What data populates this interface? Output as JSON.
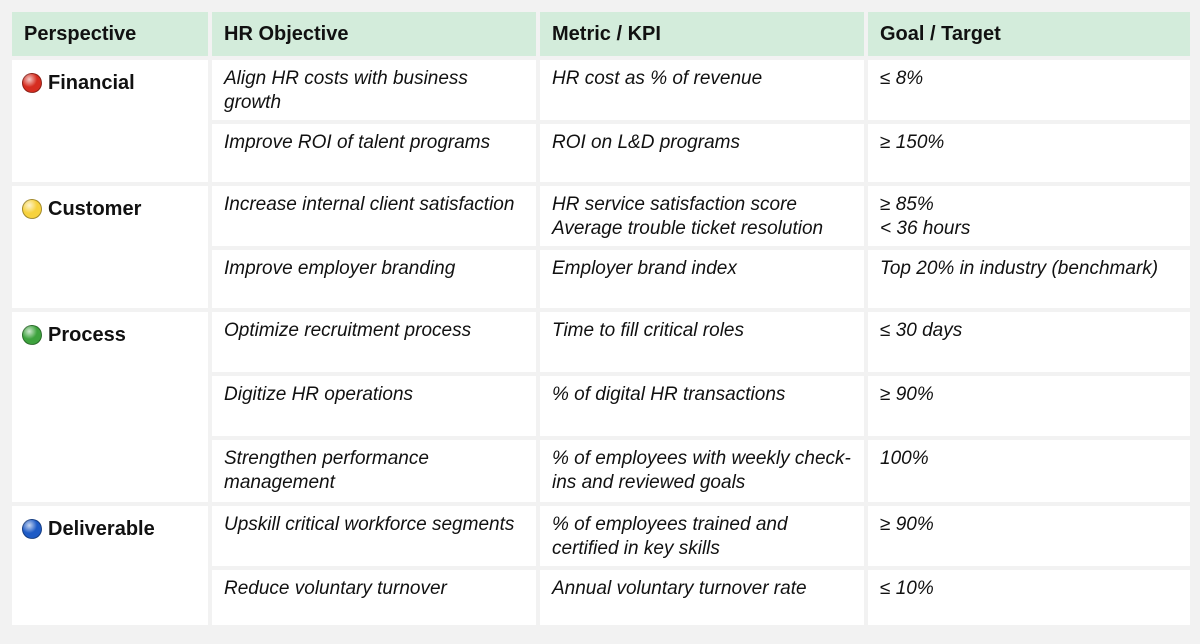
{
  "headers": {
    "perspective": "Perspective",
    "objective": "HR Objective",
    "metric": "Metric / KPI",
    "goal": "Goal / Target"
  },
  "perspectives": [
    {
      "label": "Financial",
      "icon": "red-circle-icon",
      "color": "#d62d20"
    },
    {
      "label": "Customer",
      "icon": "yellow-circle-icon",
      "color": "#f7d23e"
    },
    {
      "label": "Process",
      "icon": "green-circle-icon",
      "color": "#3ea33e"
    },
    {
      "label": "Deliverable",
      "icon": "blue-circle-icon",
      "color": "#1e5bc6"
    }
  ],
  "rows": [
    {
      "objective": [
        "Align HR costs with business",
        "growth"
      ],
      "metric": [
        "HR cost as % of revenue"
      ],
      "goal": [
        "≤ 8%"
      ]
    },
    {
      "objective": [
        "Improve ROI of talent programs"
      ],
      "metric": [
        "ROI on L&D programs"
      ],
      "goal": [
        "≥ 150%"
      ]
    },
    {
      "objective": [
        "Increase internal client satisfaction"
      ],
      "metric": [
        "HR service satisfaction score",
        "Average trouble ticket resolution"
      ],
      "goal": [
        "≥ 85%",
        "< 36 hours"
      ]
    },
    {
      "objective": [
        "Improve employer branding"
      ],
      "metric": [
        "Employer brand index"
      ],
      "goal": [
        "Top 20% in industry (benchmark)"
      ]
    },
    {
      "objective": [
        "Optimize recruitment process"
      ],
      "metric": [
        "Time to fill critical roles"
      ],
      "goal": [
        "≤ 30 days"
      ]
    },
    {
      "objective": [
        "Digitize HR operations"
      ],
      "metric": [
        "% of digital HR transactions"
      ],
      "goal": [
        "≥ 90%"
      ]
    },
    {
      "objective": [
        "Strengthen performance",
        "management"
      ],
      "metric": [
        "% of employees with weekly check-",
        "ins and reviewed goals"
      ],
      "goal": [
        "100%"
      ]
    },
    {
      "objective": [
        "Upskill critical workforce segments"
      ],
      "metric": [
        "% of employees trained and",
        "certified in key skills"
      ],
      "goal": [
        "≥ 90%"
      ]
    },
    {
      "objective": [
        "Reduce voluntary turnover"
      ],
      "metric": [
        "Annual voluntary turnover rate"
      ],
      "goal": [
        "≤ 10%"
      ]
    }
  ],
  "colors": {
    "header_bg": "#d3ecdb",
    "page_bg": "#f2f2f2",
    "cell_bg": "#ffffff"
  }
}
